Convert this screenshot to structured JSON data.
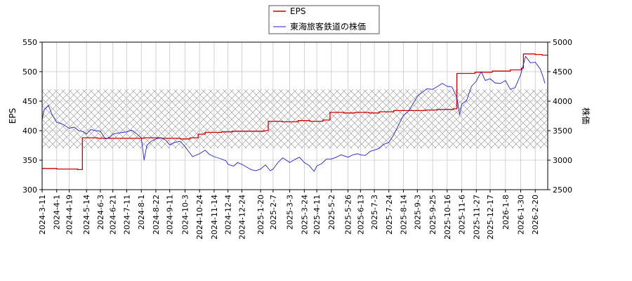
{
  "chart_data": {
    "type": "line",
    "legend": {
      "placement": "top-center",
      "entries": [
        "EPS",
        "東海旅客鉄道の株価"
      ]
    },
    "grid": true,
    "shaded_band": {
      "axis": "left",
      "from": 370,
      "to": 470,
      "pattern": "crosshatch"
    },
    "left_axis": {
      "label": "EPS",
      "ylim": [
        300,
        550
      ],
      "ticks": [
        "300",
        "350",
        "400",
        "450",
        "500",
        "550"
      ]
    },
    "right_axis": {
      "label": "株価",
      "ylim": [
        2500,
        5000
      ],
      "ticks": [
        "2500",
        "3000",
        "3500",
        "4000",
        "4500",
        "5000"
      ]
    },
    "x_range": [
      "2024-03-11",
      "2026-03-10"
    ],
    "x_ticks": [
      "2024-3-11",
      "2024-4-1",
      "2024-4-19",
      "2024-5-14",
      "2024-6-3",
      "2024-6-21",
      "2024-7-11",
      "2024-8-1",
      "2024-8-22",
      "2024-9-11",
      "2024-10-3",
      "2024-10-24",
      "2024-11-14",
      "2024-12-4",
      "2024-12-24",
      "2025-1-20",
      "2025-2-7",
      "2025-3-3",
      "2025-3-24",
      "2025-4-11",
      "2025-5-2",
      "2025-5-26",
      "2025-6-13",
      "2025-7-3",
      "2025-7-24",
      "2025-8-14",
      "2025-9-3",
      "2025-9-25",
      "2025-10-16",
      "2025-11-6",
      "2025-11-27",
      "2025-12-17",
      "2026-1-8",
      "2026-1-30",
      "2026-2-20"
    ],
    "series": [
      {
        "name": "EPS",
        "axis": "left",
        "color": "#cc0000",
        "step": true,
        "points": [
          [
            "2024-03-11",
            336
          ],
          [
            "2024-04-01",
            335
          ],
          [
            "2024-04-19",
            335
          ],
          [
            "2024-05-01",
            334
          ],
          [
            "2024-05-08",
            388
          ],
          [
            "2024-05-30",
            387
          ],
          [
            "2024-06-20",
            387
          ],
          [
            "2024-07-10",
            387
          ],
          [
            "2024-08-05",
            388
          ],
          [
            "2024-08-30",
            387
          ],
          [
            "2024-09-26",
            386
          ],
          [
            "2024-10-10",
            388
          ],
          [
            "2024-10-22",
            394
          ],
          [
            "2024-11-01",
            397
          ],
          [
            "2024-11-25",
            398
          ],
          [
            "2024-12-10",
            399
          ],
          [
            "2025-01-05",
            399
          ],
          [
            "2025-01-25",
            400
          ],
          [
            "2025-01-31",
            416
          ],
          [
            "2025-02-20",
            415
          ],
          [
            "2025-03-15",
            417
          ],
          [
            "2025-04-01",
            416
          ],
          [
            "2025-04-20",
            418
          ],
          [
            "2025-04-30",
            431
          ],
          [
            "2025-05-20",
            430
          ],
          [
            "2025-06-05",
            431
          ],
          [
            "2025-06-25",
            430
          ],
          [
            "2025-07-10",
            432
          ],
          [
            "2025-07-31",
            434
          ],
          [
            "2025-08-25",
            434
          ],
          [
            "2025-09-15",
            435
          ],
          [
            "2025-10-01",
            436
          ],
          [
            "2025-10-25",
            437
          ],
          [
            "2025-10-30",
            497
          ],
          [
            "2025-11-25",
            499
          ],
          [
            "2025-12-20",
            501
          ],
          [
            "2026-01-15",
            503
          ],
          [
            "2026-01-31",
            506
          ],
          [
            "2026-02-03",
            530
          ],
          [
            "2026-02-20",
            529
          ],
          [
            "2026-03-02",
            528
          ]
        ]
      },
      {
        "name": "東海旅客鉄道の株価",
        "axis": "right",
        "color": "#2222cc",
        "step": false,
        "points": [
          [
            "2024-03-11",
            3690
          ],
          [
            "2024-03-14",
            3860
          ],
          [
            "2024-03-20",
            3930
          ],
          [
            "2024-03-25",
            3780
          ],
          [
            "2024-04-01",
            3640
          ],
          [
            "2024-04-08",
            3620
          ],
          [
            "2024-04-15",
            3570
          ],
          [
            "2024-04-19",
            3540
          ],
          [
            "2024-04-26",
            3560
          ],
          [
            "2024-05-03",
            3500
          ],
          [
            "2024-05-10",
            3480
          ],
          [
            "2024-05-14",
            3440
          ],
          [
            "2024-05-20",
            3520
          ],
          [
            "2024-05-27",
            3500
          ],
          [
            "2024-06-03",
            3490
          ],
          [
            "2024-06-10",
            3360
          ],
          [
            "2024-06-17",
            3390
          ],
          [
            "2024-06-21",
            3440
          ],
          [
            "2024-06-28",
            3460
          ],
          [
            "2024-07-05",
            3470
          ],
          [
            "2024-07-11",
            3480
          ],
          [
            "2024-07-18",
            3510
          ],
          [
            "2024-07-25",
            3450
          ],
          [
            "2024-08-01",
            3380
          ],
          [
            "2024-08-05",
            3000
          ],
          [
            "2024-08-09",
            3250
          ],
          [
            "2024-08-15",
            3320
          ],
          [
            "2024-08-22",
            3360
          ],
          [
            "2024-08-29",
            3380
          ],
          [
            "2024-09-05",
            3340
          ],
          [
            "2024-09-11",
            3260
          ],
          [
            "2024-09-18",
            3300
          ],
          [
            "2024-09-26",
            3320
          ],
          [
            "2024-10-03",
            3230
          ],
          [
            "2024-10-08",
            3150
          ],
          [
            "2024-10-14",
            3060
          ],
          [
            "2024-10-24",
            3110
          ],
          [
            "2024-11-01",
            3170
          ],
          [
            "2024-11-07",
            3100
          ],
          [
            "2024-11-14",
            3060
          ],
          [
            "2024-11-22",
            3030
          ],
          [
            "2024-12-01",
            2990
          ],
          [
            "2024-12-04",
            2930
          ],
          [
            "2024-12-12",
            2900
          ],
          [
            "2024-12-18",
            2960
          ],
          [
            "2024-12-24",
            2930
          ],
          [
            "2025-01-06",
            2840
          ],
          [
            "2025-01-13",
            2820
          ],
          [
            "2025-01-20",
            2850
          ],
          [
            "2025-01-27",
            2920
          ],
          [
            "2025-02-03",
            2820
          ],
          [
            "2025-02-07",
            2850
          ],
          [
            "2025-02-14",
            2960
          ],
          [
            "2025-02-21",
            3040
          ],
          [
            "2025-03-03",
            2960
          ],
          [
            "2025-03-10",
            3010
          ],
          [
            "2025-03-17",
            3050
          ],
          [
            "2025-03-24",
            2960
          ],
          [
            "2025-03-31",
            2910
          ],
          [
            "2025-04-07",
            2810
          ],
          [
            "2025-04-11",
            2900
          ],
          [
            "2025-04-18",
            2940
          ],
          [
            "2025-04-25",
            3020
          ],
          [
            "2025-05-02",
            3020
          ],
          [
            "2025-05-09",
            3050
          ],
          [
            "2025-05-16",
            3090
          ],
          [
            "2025-05-26",
            3050
          ],
          [
            "2025-06-02",
            3090
          ],
          [
            "2025-06-09",
            3110
          ],
          [
            "2025-06-13",
            3090
          ],
          [
            "2025-06-20",
            3080
          ],
          [
            "2025-06-27",
            3150
          ],
          [
            "2025-07-03",
            3170
          ],
          [
            "2025-07-10",
            3200
          ],
          [
            "2025-07-17",
            3270
          ],
          [
            "2025-07-24",
            3300
          ],
          [
            "2025-07-31",
            3430
          ],
          [
            "2025-08-07",
            3600
          ],
          [
            "2025-08-14",
            3760
          ],
          [
            "2025-08-21",
            3830
          ],
          [
            "2025-08-28",
            3960
          ],
          [
            "2025-09-03",
            4080
          ],
          [
            "2025-09-10",
            4150
          ],
          [
            "2025-09-17",
            4210
          ],
          [
            "2025-09-25",
            4200
          ],
          [
            "2025-10-02",
            4250
          ],
          [
            "2025-10-09",
            4300
          ],
          [
            "2025-10-16",
            4250
          ],
          [
            "2025-10-23",
            4240
          ],
          [
            "2025-10-30",
            4060
          ],
          [
            "2025-11-03",
            3770
          ],
          [
            "2025-11-06",
            3950
          ],
          [
            "2025-11-13",
            4010
          ],
          [
            "2025-11-20",
            4250
          ],
          [
            "2025-11-27",
            4340
          ],
          [
            "2025-12-04",
            4500
          ],
          [
            "2025-12-10",
            4350
          ],
          [
            "2025-12-17",
            4380
          ],
          [
            "2025-12-24",
            4310
          ],
          [
            "2026-01-01",
            4300
          ],
          [
            "2026-01-08",
            4350
          ],
          [
            "2026-01-15",
            4200
          ],
          [
            "2026-01-22",
            4230
          ],
          [
            "2026-01-30",
            4450
          ],
          [
            "2026-02-06",
            4760
          ],
          [
            "2026-02-13",
            4650
          ],
          [
            "2026-02-20",
            4660
          ],
          [
            "2026-02-27",
            4550
          ],
          [
            "2026-03-03",
            4420
          ],
          [
            "2026-03-06",
            4300
          ]
        ]
      }
    ]
  },
  "colors": {
    "eps_line": "#cc0000",
    "price_line": "#2222cc",
    "grid": "#c8c8c8",
    "band_hatch": "#a0a0a0",
    "axis": "#000000"
  }
}
